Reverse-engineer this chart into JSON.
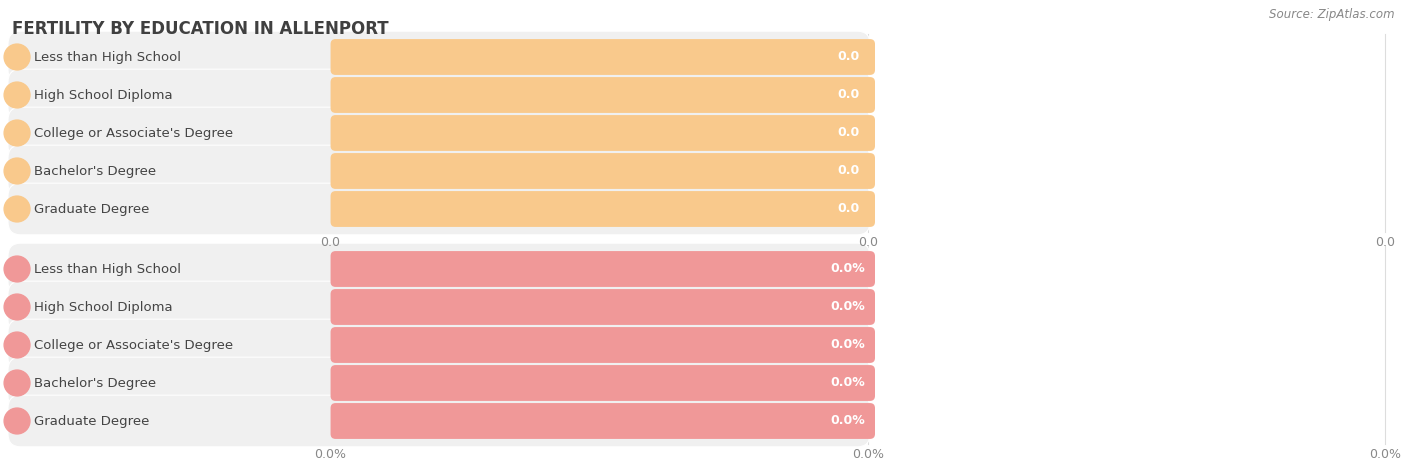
{
  "title": "FERTILITY BY EDUCATION IN ALLENPORT",
  "source_text": "Source: ZipAtlas.com",
  "categories": [
    "Less than High School",
    "High School Diploma",
    "College or Associate's Degree",
    "Bachelor's Degree",
    "Graduate Degree"
  ],
  "top_values": [
    0.0,
    0.0,
    0.0,
    0.0,
    0.0
  ],
  "bottom_values": [
    0.0,
    0.0,
    0.0,
    0.0,
    0.0
  ],
  "top_bar_color": "#F9C98C",
  "top_bar_bg_color": "#F0F0F0",
  "bottom_bar_color": "#F09898",
  "bottom_bar_bg_color": "#F0F0F0",
  "title_color": "#404040",
  "tick_color": "#888888",
  "grid_color": "#DDDDDD",
  "background_color": "#FFFFFF",
  "label_color": "#444444"
}
